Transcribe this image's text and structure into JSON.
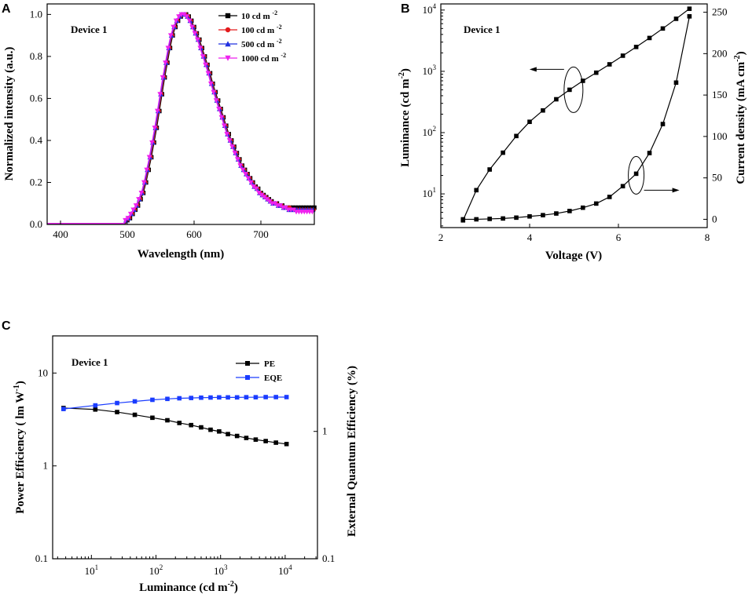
{
  "chart_data": [
    {
      "panel": "A",
      "type": "line",
      "title": "Device 1",
      "xlabel": "Wavelength (nm)",
      "ylabel": "Normalized  intensity (a.u.)",
      "xlim": [
        380,
        780
      ],
      "ylim": [
        0.0,
        1.05
      ],
      "xticks": [
        400,
        500,
        600,
        700
      ],
      "yticks": [
        0.0,
        0.2,
        0.4,
        0.6,
        0.8,
        1.0
      ],
      "xtick_labels": [
        "400",
        "500",
        "600",
        "700"
      ],
      "ytick_labels": [
        "0.0",
        "0.2",
        "0.4",
        "0.6",
        "0.8",
        "1.0"
      ],
      "legend_location": "top-right",
      "x": [
        500,
        504,
        508,
        512,
        516,
        520,
        524,
        528,
        532,
        536,
        540,
        544,
        548,
        552,
        556,
        560,
        564,
        568,
        572,
        576,
        580,
        584,
        588,
        592,
        596,
        600,
        604,
        608,
        612,
        616,
        620,
        624,
        628,
        632,
        636,
        640,
        644,
        648,
        652,
        656,
        660,
        664,
        668,
        672,
        676,
        680,
        684,
        688,
        692,
        696,
        700,
        704,
        708,
        712,
        716,
        720,
        724,
        728,
        732,
        736,
        740,
        744,
        748,
        752,
        756,
        760,
        764,
        768,
        772,
        776,
        780
      ],
      "series": [
        {
          "name": "10 cd m-2",
          "legend": {
            "base": "10 cd m",
            "sup": "-2"
          },
          "color": "#000000",
          "marker": "square",
          "shift": 0,
          "values": [
            0.02,
            0.03,
            0.05,
            0.07,
            0.09,
            0.12,
            0.15,
            0.2,
            0.26,
            0.32,
            0.39,
            0.46,
            0.54,
            0.62,
            0.7,
            0.77,
            0.84,
            0.9,
            0.94,
            0.97,
            0.99,
            1.0,
            1.0,
            0.99,
            0.97,
            0.94,
            0.91,
            0.88,
            0.84,
            0.8,
            0.76,
            0.72,
            0.67,
            0.63,
            0.59,
            0.55,
            0.51,
            0.47,
            0.43,
            0.4,
            0.37,
            0.34,
            0.31,
            0.28,
            0.26,
            0.24,
            0.22,
            0.2,
            0.18,
            0.17,
            0.15,
            0.14,
            0.13,
            0.12,
            0.11,
            0.1,
            0.1,
            0.09,
            0.09,
            0.08,
            0.08,
            0.08,
            0.08,
            0.08,
            0.08,
            0.08,
            0.08,
            0.08,
            0.08,
            0.08,
            0.08
          ]
        },
        {
          "name": "100 cd m-2",
          "legend": {
            "base": "100 cd m",
            "sup": "-2"
          },
          "color": "#e31a1c",
          "marker": "circle",
          "shift": -1,
          "values": [
            0.02,
            0.03,
            0.05,
            0.07,
            0.09,
            0.12,
            0.15,
            0.2,
            0.26,
            0.32,
            0.39,
            0.46,
            0.54,
            0.62,
            0.7,
            0.77,
            0.84,
            0.9,
            0.94,
            0.97,
            0.99,
            1.0,
            1.0,
            0.99,
            0.97,
            0.94,
            0.91,
            0.88,
            0.84,
            0.8,
            0.76,
            0.72,
            0.67,
            0.63,
            0.59,
            0.55,
            0.51,
            0.47,
            0.43,
            0.4,
            0.37,
            0.34,
            0.31,
            0.28,
            0.26,
            0.24,
            0.22,
            0.2,
            0.18,
            0.17,
            0.15,
            0.14,
            0.13,
            0.12,
            0.11,
            0.1,
            0.1,
            0.09,
            0.09,
            0.08,
            0.08,
            0.08,
            0.07,
            0.07,
            0.07,
            0.07,
            0.07,
            0.07,
            0.07,
            0.07,
            0.07
          ]
        },
        {
          "name": "500 cd m-2",
          "legend": {
            "base": "500 cd m",
            "sup": "-2"
          },
          "color": "#2030e0",
          "marker": "triangle-up",
          "shift": -2,
          "values": [
            0.02,
            0.03,
            0.05,
            0.07,
            0.09,
            0.12,
            0.15,
            0.2,
            0.26,
            0.32,
            0.39,
            0.46,
            0.54,
            0.62,
            0.7,
            0.77,
            0.84,
            0.9,
            0.94,
            0.97,
            0.99,
            1.0,
            1.0,
            0.99,
            0.97,
            0.94,
            0.91,
            0.88,
            0.84,
            0.8,
            0.76,
            0.72,
            0.67,
            0.63,
            0.59,
            0.55,
            0.51,
            0.47,
            0.43,
            0.4,
            0.37,
            0.34,
            0.31,
            0.28,
            0.26,
            0.24,
            0.22,
            0.2,
            0.18,
            0.17,
            0.15,
            0.14,
            0.13,
            0.12,
            0.11,
            0.1,
            0.1,
            0.09,
            0.09,
            0.08,
            0.08,
            0.07,
            0.07,
            0.07,
            0.07,
            0.07,
            0.07,
            0.07,
            0.07,
            0.07,
            0.07
          ]
        },
        {
          "name": "1000 cd m-2",
          "legend": {
            "base": "1000 cd m",
            "sup": "-2"
          },
          "color": "#ee22ee",
          "marker": "triangle-down",
          "shift": -3,
          "values": [
            0.02,
            0.03,
            0.05,
            0.07,
            0.09,
            0.12,
            0.15,
            0.2,
            0.26,
            0.32,
            0.39,
            0.46,
            0.54,
            0.62,
            0.7,
            0.77,
            0.84,
            0.9,
            0.94,
            0.97,
            0.99,
            1.0,
            1.0,
            0.99,
            0.97,
            0.94,
            0.91,
            0.88,
            0.84,
            0.8,
            0.76,
            0.72,
            0.67,
            0.63,
            0.59,
            0.55,
            0.51,
            0.47,
            0.43,
            0.4,
            0.37,
            0.34,
            0.31,
            0.28,
            0.26,
            0.24,
            0.22,
            0.2,
            0.18,
            0.17,
            0.15,
            0.14,
            0.13,
            0.12,
            0.11,
            0.1,
            0.1,
            0.09,
            0.09,
            0.08,
            0.08,
            0.07,
            0.07,
            0.07,
            0.06,
            0.06,
            0.06,
            0.06,
            0.06,
            0.06,
            0.06
          ]
        }
      ]
    },
    {
      "panel": "B",
      "type": "line",
      "title": "Device 1",
      "xlabel": "Voltage (V)",
      "ylabel": {
        "base": "Luminance (cd m",
        "sup": "-2",
        "tail": ")"
      },
      "ylabel_right": {
        "base": "Current density (mA cm",
        "sup": "-2",
        "tail": ")"
      },
      "xlim": [
        2,
        8
      ],
      "ylim_log10": [
        0.45,
        4.1
      ],
      "ylim_right": [
        -10,
        260
      ],
      "xticks": [
        2,
        4,
        6,
        8
      ],
      "xtick_labels": [
        "2",
        "4",
        "6",
        "8"
      ],
      "yticks_log": [
        {
          "base": "10",
          "exp": "1",
          "value": 10
        },
        {
          "base": "10",
          "exp": "2",
          "value": 100
        },
        {
          "base": "10",
          "exp": "3",
          "value": 1000
        },
        {
          "base": "10",
          "exp": "4",
          "value": 10000
        }
      ],
      "yticks_right": [
        0,
        50,
        100,
        150,
        200,
        250
      ],
      "ytick_labels_right": [
        "0",
        "50",
        "100",
        "150",
        "200",
        "250"
      ],
      "x": [
        2.5,
        2.8,
        3.1,
        3.4,
        3.7,
        4.0,
        4.3,
        4.6,
        4.9,
        5.2,
        5.5,
        5.8,
        6.1,
        6.4,
        6.7,
        7.0,
        7.3,
        7.6
      ],
      "series": [
        {
          "name": "Luminance",
          "axis": "left",
          "values": [
            3.7,
            11.5,
            25,
            47,
            88,
            150,
            230,
            350,
            500,
            700,
            950,
            1300,
            1800,
            2500,
            3500,
            5000,
            7200,
            10500
          ]
        },
        {
          "name": "Current density",
          "axis": "right",
          "values": [
            0,
            0,
            0.5,
            1,
            2,
            3.5,
            5,
            7,
            10,
            14,
            19,
            27,
            40,
            55,
            80,
            115,
            165,
            245
          ]
        }
      ],
      "annotations": [
        {
          "type": "ellipse",
          "target": "Luminance",
          "arrow": "left"
        },
        {
          "type": "ellipse",
          "target": "Current density",
          "arrow": "right"
        }
      ]
    },
    {
      "panel": "C",
      "type": "line",
      "title": "Device 1",
      "xlabel": {
        "base": "Luminance (cd m",
        "sup": "-2",
        "tail": ")"
      },
      "ylabel": {
        "base": "Power Efficiency ( lm W",
        "sup": "-1",
        "tail": ")"
      },
      "ylabel_right": "External Quantum Efficiency (%)",
      "xlim_log10": [
        0.4,
        4.5
      ],
      "ylim_log10": [
        -1,
        1.4
      ],
      "ylim_right_log10": [
        -1,
        0.75
      ],
      "xticks_log": [
        {
          "base": "10",
          "exp": "1",
          "value": 10
        },
        {
          "base": "10",
          "exp": "2",
          "value": 100
        },
        {
          "base": "10",
          "exp": "3",
          "value": 1000
        },
        {
          "base": "10",
          "exp": "4",
          "value": 10000
        }
      ],
      "yticks": [
        {
          "label": "0.1",
          "value": 0.1
        },
        {
          "label": "1",
          "value": 1
        },
        {
          "label": "10",
          "value": 10
        }
      ],
      "yticks_right": [
        {
          "label": "0.1",
          "value": 0.1
        },
        {
          "label": "1",
          "value": 1
        }
      ],
      "legend_location": "top-right",
      "x": [
        3.7,
        11.5,
        25,
        47,
        88,
        150,
        230,
        350,
        500,
        700,
        950,
        1300,
        1800,
        2500,
        3500,
        5000,
        7200,
        10500
      ],
      "series": [
        {
          "name": "PE",
          "axis": "left",
          "color": "#000000",
          "values": [
            4.2,
            4.05,
            3.8,
            3.55,
            3.3,
            3.1,
            2.9,
            2.75,
            2.6,
            2.45,
            2.35,
            2.2,
            2.1,
            2.0,
            1.92,
            1.85,
            1.78,
            1.72
          ]
        },
        {
          "name": "EQE",
          "axis": "right",
          "color": "#1a3cff",
          "values": [
            1.5,
            1.6,
            1.67,
            1.72,
            1.77,
            1.8,
            1.82,
            1.83,
            1.84,
            1.845,
            1.85,
            1.85,
            1.85,
            1.855,
            1.855,
            1.86,
            1.86,
            1.86
          ]
        }
      ]
    }
  ]
}
